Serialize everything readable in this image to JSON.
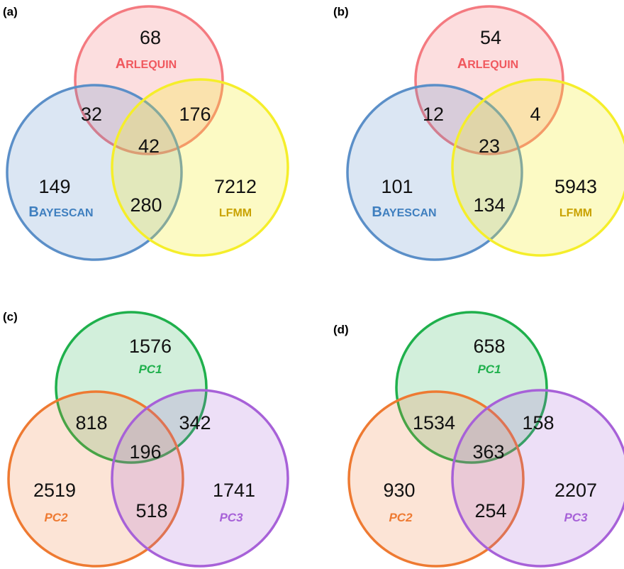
{
  "colors": {
    "arlequin": "#f47a80",
    "arlequin_text": "#f0585e",
    "bayescan": "#5b8fc8",
    "bayescan_text": "#3f7fbf",
    "lfmm": "#f5ee2a",
    "lfmm_text": "#c9a200",
    "pc1": "#1fb04c",
    "pc1_text": "#1fb04c",
    "pc2": "#ee7a32",
    "pc2_text": "#ee7a32",
    "pc3": "#a761d8",
    "pc3_text": "#a761d8"
  },
  "panels": [
    {
      "label": "(a)",
      "sets": {
        "top": {
          "first": "A",
          "rest": "RLEQUIN",
          "color": "arlequin"
        },
        "left": {
          "first": "B",
          "rest": "AYESCAN",
          "color": "bayescan"
        },
        "right": {
          "first": "LFMM",
          "rest": "",
          "color": "lfmm"
        }
      },
      "counts": {
        "top_only": "68",
        "top_left": "32",
        "top_right": "176",
        "center": "42",
        "left_only": "149",
        "left_right": "280",
        "right_only": "7212"
      }
    },
    {
      "label": "(b)",
      "sets": {
        "top": {
          "first": "A",
          "rest": "RLEQUIN",
          "color": "arlequin"
        },
        "left": {
          "first": "B",
          "rest": "AYESCAN",
          "color": "bayescan"
        },
        "right": {
          "first": "LFMM",
          "rest": "",
          "color": "lfmm"
        }
      },
      "counts": {
        "top_only": "54",
        "top_left": "12",
        "top_right": "4",
        "center": "23",
        "left_only": "101",
        "left_right": "134",
        "right_only": "5943"
      }
    },
    {
      "label": "(c)",
      "sets": {
        "top": {
          "name": "PC1",
          "color": "pc1"
        },
        "left": {
          "name": "PC2",
          "color": "pc2"
        },
        "right": {
          "name": "PC3",
          "color": "pc3"
        }
      },
      "counts": {
        "top_only": "1576",
        "top_left": "818",
        "top_right": "342",
        "center": "196",
        "left_only": "2519",
        "left_right": "518",
        "right_only": "1741"
      }
    },
    {
      "label": "(d)",
      "sets": {
        "top": {
          "name": "PC1",
          "color": "pc1"
        },
        "left": {
          "name": "PC2",
          "color": "pc2"
        },
        "right": {
          "name": "PC3",
          "color": "pc3"
        }
      },
      "counts": {
        "top_only": "658",
        "top_left": "1534",
        "top_right": "158",
        "center": "363",
        "left_only": "930",
        "left_right": "254",
        "right_only": "2207"
      }
    }
  ]
}
